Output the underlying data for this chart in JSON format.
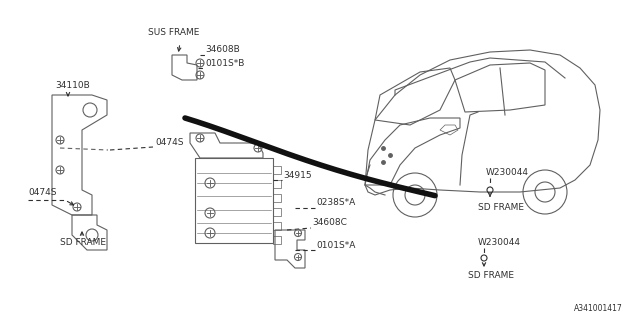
{
  "bg_color": "#ffffff",
  "line_color": "#606060",
  "dark_color": "#303030",
  "diagram_id": "A341001417",
  "figsize": [
    6.4,
    3.2
  ],
  "dpi": 100,
  "labels": {
    "sus_frame": "SUS FRAME",
    "34110B": "34110B",
    "0474S_top": "0474S",
    "0474S_bot": "0474S",
    "34915": "34915",
    "0238S*A": "0238S*A",
    "34608B": "34608B",
    "0101S*B": "0101S*B",
    "34608C": "34608C",
    "0101S*A": "0101S*A",
    "W230044_top": "W230044",
    "W230044_bot": "W230044",
    "SD_FRAME_rt": "SD FRAME",
    "SD_FRAME_rb": "SD FRAME",
    "SD_FRAME_lt": "SD FRAME"
  }
}
